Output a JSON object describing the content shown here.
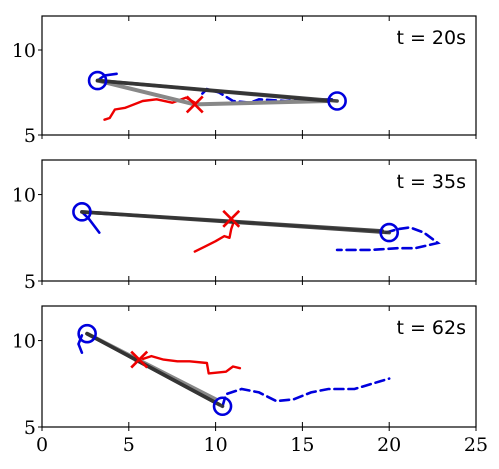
{
  "chart_data": {
    "type": "line",
    "shared_x": {
      "xlim": [
        0,
        25
      ],
      "ticks": [
        0,
        5,
        10,
        15,
        20,
        25
      ]
    },
    "panels": [
      {
        "label": "t = 20s",
        "ylim": [
          5,
          12
        ],
        "yticks": [
          5,
          10
        ],
        "dashed_path": [
          [
            16.7,
            7.1
          ],
          [
            14,
            7.0
          ],
          [
            12.5,
            7.1
          ],
          [
            12,
            6.9
          ],
          [
            11,
            7.0
          ],
          [
            10.2,
            7.5
          ],
          [
            9.5,
            7.7
          ],
          [
            9.1,
            7.3
          ]
        ],
        "solid_path": [
          [
            3.6,
            5.9
          ],
          [
            3.9,
            6.0
          ],
          [
            4.2,
            6.5
          ],
          [
            4.8,
            6.6
          ],
          [
            5.8,
            7.0
          ],
          [
            6.6,
            7.1
          ],
          [
            7.5,
            6.9
          ],
          [
            8.3,
            7.2
          ],
          [
            8.8,
            6.9
          ]
        ],
        "short_dash": [
          [
            3.2,
            8.2
          ],
          [
            3.6,
            8.5
          ],
          [
            4.3,
            8.6
          ]
        ],
        "bars_dark": [
          [
            [
              3.2,
              8.2
            ],
            [
              17.0,
              7.0
            ]
          ],
          [
            [
              3.2,
              8.2
            ],
            [
              16.5,
              7.0
            ]
          ]
        ],
        "bars_gray": [
          [
            [
              3.2,
              8.2
            ],
            [
              8.8,
              6.8
            ]
          ],
          [
            [
              8.8,
              6.8
            ],
            [
              16.5,
              7.0
            ]
          ]
        ],
        "circles": [
          [
            3.2,
            8.2
          ],
          [
            17.0,
            7.0
          ]
        ],
        "cross": [
          8.8,
          6.8
        ]
      },
      {
        "label": "t = 35s",
        "ylim": [
          5,
          12
        ],
        "yticks": [
          5,
          10
        ],
        "dashed_path": [
          [
            19.8,
            7.8
          ],
          [
            20.5,
            8.0
          ],
          [
            21.2,
            8.1
          ],
          [
            22.0,
            7.8
          ],
          [
            22.8,
            7.2
          ],
          [
            21.5,
            6.9
          ],
          [
            20.5,
            6.9
          ],
          [
            19.0,
            6.8
          ],
          [
            17.0,
            6.8
          ]
        ],
        "solid_path": [
          [
            8.8,
            6.7
          ],
          [
            9.4,
            7.0
          ],
          [
            10.0,
            7.3
          ],
          [
            10.5,
            7.6
          ],
          [
            10.8,
            7.5
          ],
          [
            10.9,
            8.0
          ],
          [
            11.0,
            8.3
          ]
        ],
        "short_dash": [
          [
            2.3,
            9.0
          ],
          [
            2.7,
            8.6
          ],
          [
            3.3,
            7.8
          ]
        ],
        "bars_dark": [
          [
            [
              2.3,
              9.0
            ],
            [
              20.0,
              7.8
            ]
          ],
          [
            [
              2.3,
              9.0
            ],
            [
              19.6,
              7.9
            ]
          ]
        ],
        "bars_gray": [],
        "circles": [
          [
            2.3,
            9.0
          ],
          [
            20.0,
            7.8
          ]
        ],
        "cross": [
          10.9,
          8.6
        ]
      },
      {
        "label": "t = 62s",
        "ylim": [
          5,
          12
        ],
        "yticks": [
          5,
          10
        ],
        "dashed_path": [
          [
            10.4,
            6.2
          ],
          [
            10.6,
            6.9
          ],
          [
            11.5,
            7.2
          ],
          [
            12.5,
            7.0
          ],
          [
            13.5,
            6.5
          ],
          [
            14.5,
            6.6
          ],
          [
            15.5,
            7.0
          ],
          [
            16.5,
            7.2
          ],
          [
            18.0,
            7.2
          ],
          [
            19.0,
            7.5
          ],
          [
            20.0,
            7.8
          ]
        ],
        "solid_path": [
          [
            5.4,
            8.8
          ],
          [
            6.3,
            9.1
          ],
          [
            7.0,
            8.9
          ],
          [
            7.8,
            8.8
          ],
          [
            8.5,
            8.8
          ],
          [
            9.5,
            8.7
          ],
          [
            9.6,
            8.1
          ],
          [
            10.6,
            8.2
          ],
          [
            11.0,
            8.5
          ],
          [
            11.4,
            8.4
          ]
        ],
        "short_dash": [
          [
            2.3,
            10.3
          ],
          [
            2.1,
            9.8
          ],
          [
            2.3,
            9.3
          ]
        ],
        "bars_dark": [
          [
            [
              2.6,
              10.4
            ],
            [
              10.4,
              6.2
            ]
          ],
          [
            [
              2.6,
              10.4
            ],
            [
              10.2,
              6.3
            ]
          ]
        ],
        "bars_gray": [
          [
            [
              2.6,
              10.4
            ],
            [
              10.0,
              6.6
            ]
          ]
        ],
        "circles": [
          [
            2.6,
            10.4
          ],
          [
            10.4,
            6.2
          ]
        ],
        "cross": [
          5.6,
          8.9
        ]
      }
    ]
  }
}
